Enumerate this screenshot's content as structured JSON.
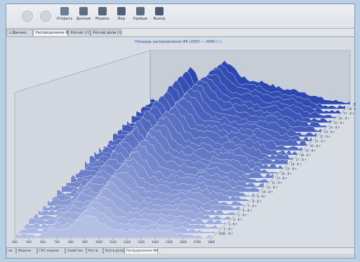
{
  "toolbar": {
    "buttons": [
      {
        "label": "Открыть",
        "icon": "open-icon",
        "color": "#6b7f95"
      },
      {
        "label": "Данные",
        "icon": "data-icon",
        "color": "#5d6f85"
      },
      {
        "label": "Модель",
        "icon": "model-icon",
        "color": "#55677d"
      },
      {
        "label": "Вид",
        "icon": "view-icon",
        "color": "#4f6178"
      },
      {
        "label": "Кривые",
        "icon": "curves-icon",
        "color": "#5a6c82"
      },
      {
        "label": "Выход",
        "icon": "exit-icon",
        "color": "#4a5a70"
      }
    ]
  },
  "tabs_top": [
    "з Данных",
    "Распределение ФК",
    "Кол-во (т)",
    "Кол-во доли (т)"
  ],
  "chart": {
    "title": "Площадь распределения ФК (2003 — 2008 гг.)",
    "x_tick_labels": [
      "400",
      "500",
      "600",
      "700",
      "800",
      "900",
      "1000",
      "1100",
      "1200",
      "1300",
      "1400",
      "1500",
      "1600",
      "1700",
      "1800"
    ],
    "series_labels": [
      "29 - 8 т",
      "28 - 8 т",
      "27 - 8 т",
      "26 - 8 т",
      "25 - 8 т",
      "24 - 8 т",
      "23 - 8 т",
      "22 - 8 т",
      "21 - 8 т",
      "20 - 8 т",
      "19 - 8 т",
      "18 - 8 т",
      "17 - 8 т",
      "16 - 8 т",
      "15 - 8 т",
      "14 - 8 т",
      "13 - 8 т",
      "12 - 8 т",
      "11 - 8 т",
      "10 - 8 т",
      "9 - 8 т",
      "8 - 8 т",
      "7 - 8 т",
      "6 - 8 т",
      "5 - 8 т",
      "4 - 8 т",
      "3 - 8 т",
      "2 - 8 т",
      "2001 - 8 т"
    ],
    "colors": {
      "back": "#7d8eab",
      "front": "#b4bfe4",
      "dark": "#2c48b0",
      "wall": "#c7cdd6",
      "floor": "#dde3ea"
    }
  },
  "tabs_bottom": [
    "ов",
    "Модели",
    "ГКС модели",
    "Свойства",
    "Кол-в.",
    "Кол-в доли",
    "Распределение ФК"
  ]
}
